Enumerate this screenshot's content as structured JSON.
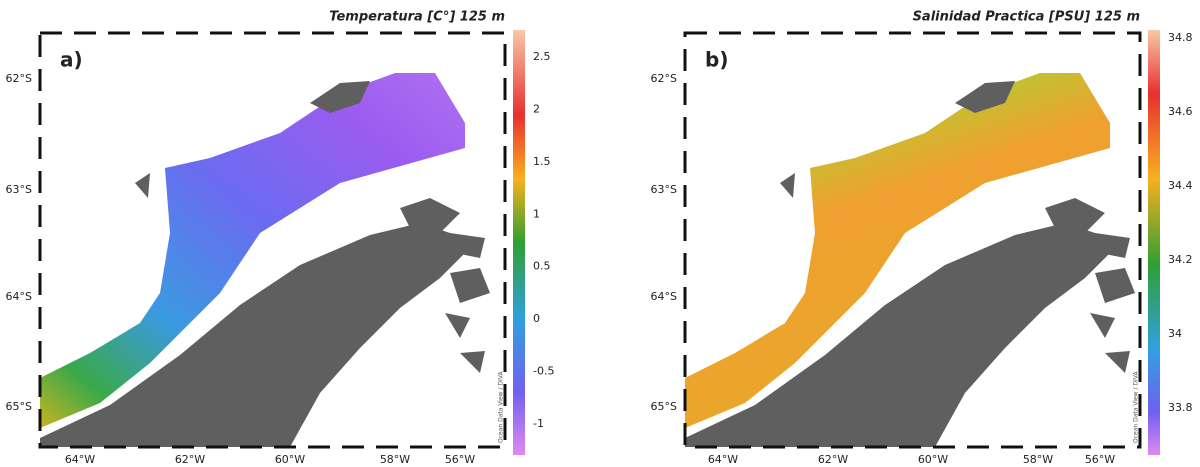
{
  "panels": [
    {
      "label": "a)",
      "title": "Temperatura [C°] 125 m",
      "lat_labels": [
        "62°S",
        "63°S",
        "64°S",
        "65°S"
      ],
      "lon_labels": [
        "64°W",
        "62°W",
        "60°W",
        "58°W",
        "56°W"
      ],
      "colorbar_ticks": [
        "2.5",
        "2",
        "1.5",
        "1",
        "0.5",
        "0",
        "-0.5",
        "-1"
      ],
      "credit": "Ocean Data View / DIVA"
    },
    {
      "label": "b)",
      "title": "Salinidad Practica [PSU] 125 m",
      "lat_labels": [
        "62°S",
        "63°S",
        "64°S",
        "65°S"
      ],
      "lon_labels": [
        "64°W",
        "62°W",
        "60°W",
        "58°W",
        "56°W"
      ],
      "colorbar_ticks": [
        "34.8",
        "34.6",
        "34.4",
        "34.2",
        "34",
        "33.8"
      ],
      "credit": "Ocean Data View / DIVA"
    }
  ]
}
